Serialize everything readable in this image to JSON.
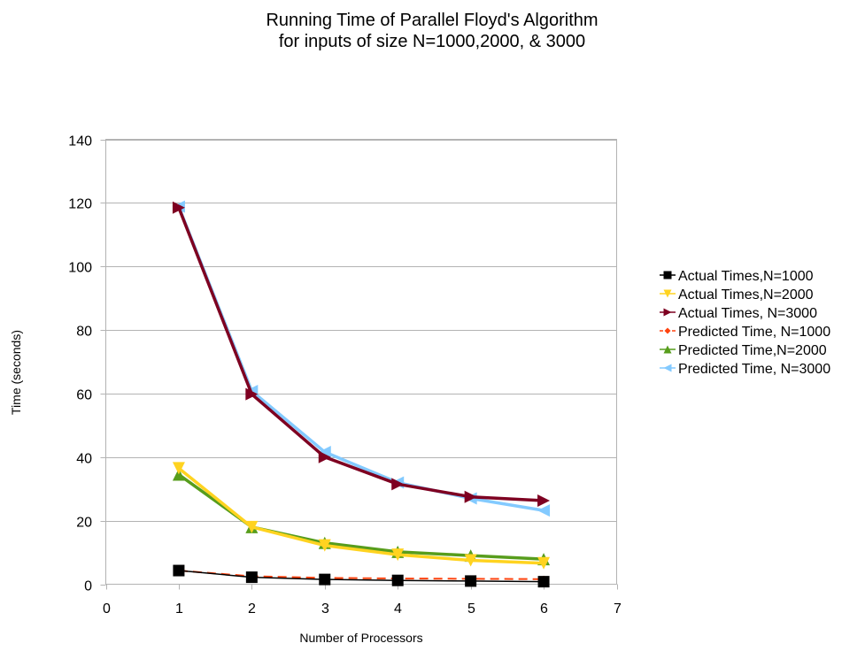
{
  "chart_data": {
    "type": "line",
    "title_lines": [
      "Running Time of Parallel Floyd's Algorithm",
      "for inputs of size N=1000,2000, & 3000"
    ],
    "xlabel": "Number of Processors",
    "ylabel": "Time (seconds)",
    "xlim": [
      0,
      7
    ],
    "ylim": [
      0,
      140
    ],
    "x_ticks": [
      0,
      1,
      2,
      3,
      4,
      5,
      6,
      7
    ],
    "y_ticks": [
      0,
      20,
      40,
      60,
      80,
      100,
      120,
      140
    ],
    "grid": "horizontal",
    "legend_position": "right",
    "x": [
      1,
      2,
      3,
      4,
      5,
      6
    ],
    "series": [
      {
        "name": "Actual Times,N=1000",
        "color": "#000000",
        "marker": "square",
        "dash": "solid",
        "values": [
          4.3,
          2.2,
          1.5,
          1.2,
          1.0,
          0.8
        ]
      },
      {
        "name": "Actual Times,N=2000",
        "color": "#ffd320",
        "marker": "triangle-down",
        "dash": "solid",
        "values": [
          36.5,
          18.0,
          12.2,
          9.3,
          7.5,
          6.6
        ]
      },
      {
        "name": "Actual Times, N=3000",
        "color": "#7e0021",
        "marker": "triangle-right",
        "dash": "solid",
        "values": [
          118.5,
          59.8,
          40.0,
          31.5,
          27.5,
          26.3
        ]
      },
      {
        "name": "Predicted Time, N=1000",
        "color": "#ff420e",
        "marker": "diamond",
        "dash": "dashed",
        "values": [
          4.3,
          2.5,
          2.0,
          1.8,
          1.7,
          1.6
        ]
      },
      {
        "name": "Predicted Time,N=2000",
        "color": "#579d1c",
        "marker": "triangle-up",
        "dash": "solid",
        "values": [
          34.5,
          18.0,
          13.0,
          10.2,
          9.0,
          7.9
        ]
      },
      {
        "name": "Predicted Time, N=3000",
        "color": "#83caff",
        "marker": "triangle-left",
        "dash": "solid",
        "values": [
          118.8,
          60.8,
          41.6,
          32.0,
          27.0,
          23.2
        ]
      }
    ]
  }
}
